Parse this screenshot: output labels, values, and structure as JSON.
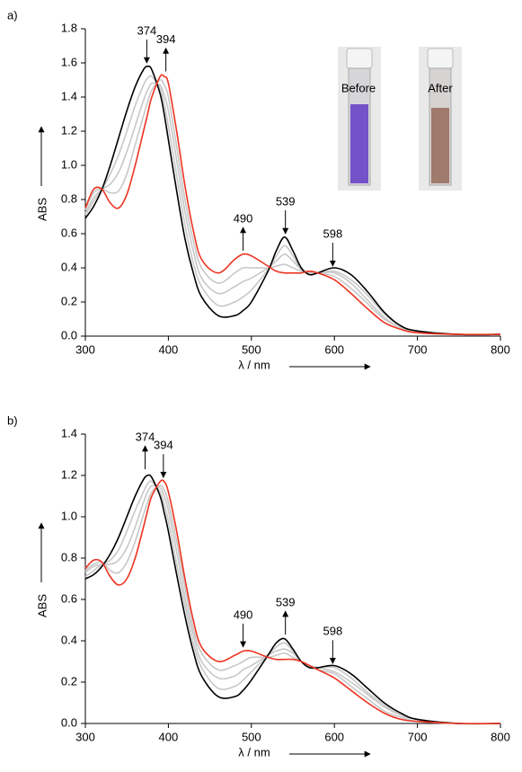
{
  "chart_data": [
    {
      "type": "line",
      "panel": "a)",
      "xlabel": "λ / nm",
      "ylabel": "ABS",
      "inset_labels": [
        "Before",
        "After"
      ],
      "x": [
        300,
        310,
        320,
        330,
        340,
        350,
        360,
        370,
        375,
        380,
        390,
        395,
        400,
        410,
        420,
        430,
        440,
        460,
        480,
        490,
        500,
        520,
        530,
        540,
        550,
        560,
        570,
        580,
        600,
        620,
        640,
        660,
        680,
        700,
        750,
        800
      ],
      "xlim": [
        300,
        800
      ],
      "xticks": [
        300,
        400,
        500,
        600,
        700,
        800
      ],
      "ylim": [
        0,
        1.8
      ],
      "yticks": [
        {
          "value": 0,
          "label": "0.0"
        },
        0.2,
        0.4,
        0.6,
        0.8,
        {
          "value": 1,
          "label": "1.0"
        },
        1.2,
        1.4,
        1.6,
        1.8
      ],
      "series": [
        {
          "color": "#c8c8c8",
          "values": [
            0.71,
            0.79,
            0.86,
            0.95,
            1.06,
            1.2,
            1.35,
            1.47,
            1.51,
            1.52,
            1.45,
            1.36,
            1.23,
            0.94,
            0.65,
            0.43,
            0.29,
            0.18,
            0.2,
            0.23,
            0.27,
            0.39,
            0.47,
            0.53,
            0.47,
            0.39,
            0.37,
            0.37,
            0.38,
            0.33,
            0.24,
            0.13,
            0.06,
            0.03,
            0.01,
            0.01
          ]
        },
        {
          "color": "#c8c8c8",
          "values": [
            0.72,
            0.81,
            0.86,
            0.89,
            0.96,
            1.08,
            1.23,
            1.38,
            1.44,
            1.48,
            1.47,
            1.41,
            1.32,
            1.03,
            0.73,
            0.5,
            0.34,
            0.25,
            0.29,
            0.32,
            0.34,
            0.4,
            0.44,
            0.48,
            0.44,
            0.39,
            0.37,
            0.37,
            0.37,
            0.31,
            0.21,
            0.11,
            0.05,
            0.03,
            0.01,
            0.01
          ]
        },
        {
          "color": "#c8c8c8",
          "values": [
            0.74,
            0.84,
            0.86,
            0.84,
            0.85,
            0.95,
            1.12,
            1.29,
            1.37,
            1.44,
            1.5,
            1.47,
            1.4,
            1.11,
            0.8,
            0.56,
            0.4,
            0.31,
            0.37,
            0.4,
            0.4,
            0.4,
            0.41,
            0.42,
            0.4,
            0.38,
            0.38,
            0.37,
            0.35,
            0.28,
            0.19,
            0.1,
            0.05,
            0.02,
            0.01,
            0.01
          ]
        },
        {
          "color": "#000000",
          "values": [
            0.69,
            0.76,
            0.86,
            1.0,
            1.16,
            1.32,
            1.46,
            1.56,
            1.58,
            1.56,
            1.42,
            1.3,
            1.15,
            0.85,
            0.57,
            0.37,
            0.23,
            0.12,
            0.12,
            0.15,
            0.2,
            0.38,
            0.5,
            0.58,
            0.5,
            0.4,
            0.36,
            0.37,
            0.4,
            0.36,
            0.26,
            0.14,
            0.06,
            0.03,
            0.01,
            0.01
          ]
        },
        {
          "color": "#ee3322",
          "values": [
            0.75,
            0.86,
            0.86,
            0.78,
            0.75,
            0.83,
            1.0,
            1.2,
            1.3,
            1.4,
            1.52,
            1.52,
            1.48,
            1.2,
            0.88,
            0.62,
            0.45,
            0.37,
            0.45,
            0.48,
            0.47,
            0.41,
            0.38,
            0.37,
            0.37,
            0.37,
            0.38,
            0.37,
            0.33,
            0.25,
            0.16,
            0.08,
            0.04,
            0.02,
            0.01,
            0.01
          ]
        }
      ],
      "annotations": [
        {
          "label": "374",
          "x": 374,
          "y": 1.6,
          "direction": "down"
        },
        {
          "label": "394",
          "x": 397,
          "y": 1.55,
          "direction": "up"
        },
        {
          "label": "490",
          "x": 490,
          "y": 0.5,
          "direction": "up"
        },
        {
          "label": "539",
          "x": 541,
          "y": 0.6,
          "direction": "down"
        },
        {
          "label": "598",
          "x": 598,
          "y": 0.41,
          "direction": "down"
        }
      ]
    },
    {
      "type": "line",
      "panel": "b)",
      "xlabel": "λ / nm",
      "ylabel": "ABS",
      "x": [
        300,
        310,
        320,
        330,
        340,
        350,
        360,
        370,
        375,
        380,
        390,
        395,
        400,
        410,
        420,
        430,
        440,
        460,
        480,
        490,
        500,
        520,
        530,
        540,
        550,
        560,
        570,
        580,
        600,
        620,
        640,
        660,
        680,
        700,
        750,
        800
      ],
      "xlim": [
        300,
        800
      ],
      "xticks": [
        300,
        400,
        500,
        600,
        700,
        800
      ],
      "ylim": [
        0,
        1.4
      ],
      "yticks": [
        {
          "value": 0,
          "label": "0.0"
        },
        0.2,
        0.4,
        0.6,
        0.8,
        {
          "value": 1,
          "label": "1.0"
        },
        1.2,
        1.4
      ],
      "series": [
        {
          "color": "#c8c8c8",
          "values": [
            0.71,
            0.74,
            0.77,
            0.79,
            0.84,
            0.93,
            1.03,
            1.12,
            1.16,
            1.17,
            1.12,
            1.06,
            0.98,
            0.77,
            0.57,
            0.39,
            0.27,
            0.17,
            0.18,
            0.21,
            0.25,
            0.33,
            0.37,
            0.39,
            0.35,
            0.3,
            0.27,
            0.27,
            0.27,
            0.22,
            0.15,
            0.09,
            0.04,
            0.02,
            0,
            0
          ]
        },
        {
          "color": "#c8c8c8",
          "values": [
            0.73,
            0.76,
            0.77,
            0.77,
            0.79,
            0.85,
            0.95,
            1.07,
            1.12,
            1.15,
            1.14,
            1.1,
            1.03,
            0.83,
            0.61,
            0.43,
            0.3,
            0.22,
            0.23,
            0.26,
            0.28,
            0.33,
            0.35,
            0.36,
            0.34,
            0.3,
            0.28,
            0.27,
            0.25,
            0.2,
            0.14,
            0.08,
            0.04,
            0.02,
            0,
            0
          ]
        },
        {
          "color": "#c8c8c8",
          "values": [
            0.74,
            0.77,
            0.78,
            0.74,
            0.73,
            0.78,
            0.88,
            1.01,
            1.07,
            1.12,
            1.15,
            1.13,
            1.07,
            0.88,
            0.66,
            0.46,
            0.34,
            0.26,
            0.28,
            0.3,
            0.32,
            0.32,
            0.33,
            0.34,
            0.32,
            0.3,
            0.28,
            0.26,
            0.24,
            0.18,
            0.12,
            0.06,
            0.03,
            0.01,
            0,
            0
          ]
        },
        {
          "color": "#000000",
          "values": [
            0.7,
            0.72,
            0.76,
            0.82,
            0.9,
            1.0,
            1.1,
            1.18,
            1.2,
            1.19,
            1.1,
            1.02,
            0.93,
            0.72,
            0.52,
            0.35,
            0.23,
            0.13,
            0.13,
            0.16,
            0.21,
            0.33,
            0.39,
            0.41,
            0.36,
            0.3,
            0.27,
            0.27,
            0.28,
            0.24,
            0.17,
            0.1,
            0.05,
            0.02,
            0,
            0
          ]
        },
        {
          "color": "#ee3322",
          "values": [
            0.75,
            0.79,
            0.78,
            0.71,
            0.67,
            0.7,
            0.8,
            0.95,
            1.03,
            1.1,
            1.17,
            1.17,
            1.12,
            0.93,
            0.7,
            0.5,
            0.37,
            0.3,
            0.33,
            0.35,
            0.35,
            0.32,
            0.31,
            0.31,
            0.31,
            0.3,
            0.28,
            0.26,
            0.22,
            0.16,
            0.1,
            0.05,
            0.02,
            0.01,
            0,
            0
          ]
        }
      ],
      "annotations": [
        {
          "label": "374",
          "x": 372,
          "y": 1.23,
          "direction": "up"
        },
        {
          "label": "394",
          "x": 394,
          "y": 1.19,
          "direction": "down"
        },
        {
          "label": "490",
          "x": 490,
          "y": 0.37,
          "direction": "down"
        },
        {
          "label": "539",
          "x": 541,
          "y": 0.43,
          "direction": "up"
        },
        {
          "label": "598",
          "x": 598,
          "y": 0.29,
          "direction": "down"
        }
      ]
    }
  ]
}
